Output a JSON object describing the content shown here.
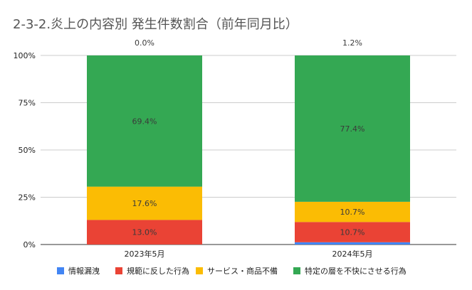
{
  "chart_data": {
    "type": "bar",
    "stacked": true,
    "percent": true,
    "title": "2-3-2.炎上の内容別 発生件数割合（前年同月比）",
    "categories": [
      "2023年5月",
      "2024年5月"
    ],
    "ylim": [
      0,
      100
    ],
    "yticks": [
      0,
      25,
      50,
      75,
      100
    ],
    "ytick_labels": [
      "0%",
      "25%",
      "50%",
      "75%",
      "100%"
    ],
    "grid": true,
    "legend_position": "bottom",
    "series": [
      {
        "name": "情報漏洩",
        "color": "#4285F4",
        "values": [
          0.0,
          1.2
        ],
        "labels": [
          "",
          ""
        ]
      },
      {
        "name": "規範に反した行為",
        "color": "#EA4335",
        "values": [
          13.0,
          10.7
        ],
        "labels": [
          "13.0%",
          "10.7%"
        ]
      },
      {
        "name": "サービス・商品不備",
        "color": "#FBBC04",
        "values": [
          17.6,
          10.7
        ],
        "labels": [
          "17.6%",
          "10.7%"
        ]
      },
      {
        "name": "特定の層を不快にさせる行為",
        "color": "#34A853",
        "values": [
          69.4,
          77.4
        ],
        "labels": [
          "69.4%",
          "77.4%"
        ]
      }
    ],
    "top_labels": [
      "0.0%",
      "1.2%"
    ]
  }
}
